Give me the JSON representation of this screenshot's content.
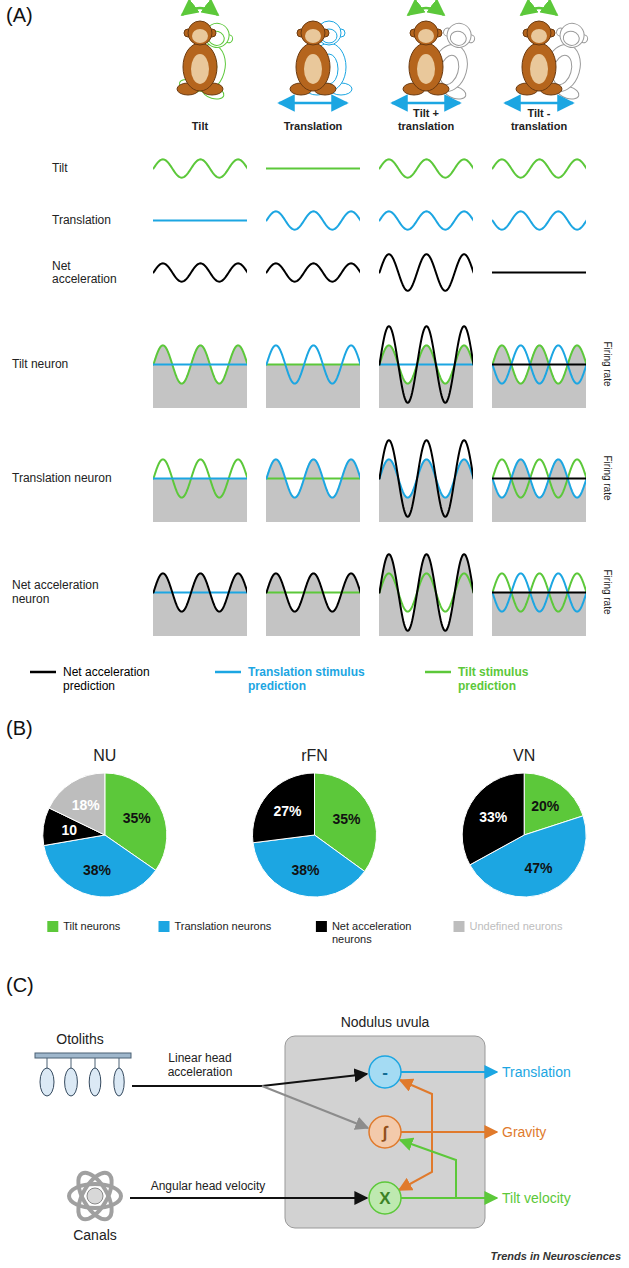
{
  "panel_a": {
    "letter": "(A)",
    "columns": [
      "Tilt",
      "Translation",
      "Tilt + translation",
      "Tilt - translation"
    ],
    "signals": [
      {
        "name": "Tilt",
        "color": "#5cc83a",
        "values": [
          1,
          0,
          1,
          1
        ]
      },
      {
        "name": "Translation",
        "color": "#1ca6e2",
        "values": [
          0,
          1,
          1,
          -1
        ]
      },
      {
        "name": "Net acceleration",
        "color": "#000000",
        "values": [
          1,
          1,
          2,
          0
        ]
      }
    ],
    "neurons": [
      {
        "name": "Tilt neuron",
        "response": [
          1,
          0,
          1,
          1
        ],
        "predictions": [
          [
            null,
            0,
            1
          ],
          [
            null,
            1,
            0
          ],
          [
            2,
            0,
            1
          ],
          [
            0,
            -1,
            1
          ]
        ]
      },
      {
        "name": "Translation neuron",
        "response": [
          0,
          1,
          1,
          -1
        ],
        "predictions": [
          [
            null,
            0,
            1
          ],
          [
            null,
            1,
            0
          ],
          [
            2,
            1,
            null
          ],
          [
            0,
            -1,
            1
          ]
        ]
      },
      {
        "name": "Net acceleration neuron",
        "response": [
          1,
          1,
          2,
          0
        ],
        "predictions": [
          [
            1,
            0,
            null
          ],
          [
            1,
            null,
            0
          ],
          [
            2,
            null,
            1
          ],
          [
            0,
            -1,
            1
          ]
        ]
      }
    ],
    "neuron_axis_label": "Firing rate",
    "legend": [
      {
        "label": "Net acceleration prediction",
        "color": "#000000"
      },
      {
        "label": "Translation stimulus prediction",
        "color": "#1ca6e2"
      },
      {
        "label": "Tilt stimulus prediction",
        "color": "#5cc83a"
      }
    ]
  },
  "panel_b": {
    "letter": "(B)"
  },
  "chart_data": [
    {
      "type": "pie",
      "title": "NU",
      "categories": [
        "Tilt neurons",
        "Translation neurons",
        "Net acceleration neurons",
        "Undefined neurons"
      ],
      "values": [
        35,
        38,
        10,
        18
      ],
      "value_labels": [
        "35%",
        "38%",
        "10",
        "18%"
      ],
      "colors": [
        "#5cc83a",
        "#1ca6e2",
        "#000000",
        "#bdbdbd"
      ],
      "data_labels": true,
      "legend": "bottom"
    },
    {
      "type": "pie",
      "title": "rFN",
      "categories": [
        "Tilt neurons",
        "Translation neurons",
        "Net acceleration neurons"
      ],
      "values": [
        35,
        38,
        27
      ],
      "value_labels": [
        "35%",
        "38%",
        "27%"
      ],
      "colors": [
        "#5cc83a",
        "#1ca6e2",
        "#000000"
      ],
      "data_labels": true,
      "legend": "bottom"
    },
    {
      "type": "pie",
      "title": "VN",
      "categories": [
        "Tilt neurons",
        "Translation neurons",
        "Net acceleration neurons"
      ],
      "values": [
        20,
        47,
        33
      ],
      "value_labels": [
        "20%",
        "47%",
        "33%"
      ],
      "colors": [
        "#5cc83a",
        "#1ca6e2",
        "#000000"
      ],
      "data_labels": true,
      "legend": "bottom"
    }
  ],
  "panel_c": {
    "letter": "(C)",
    "box_title": "Nodulus uvula",
    "inputs": [
      {
        "label": "Otoliths",
        "signal": "Linear head acceleration"
      },
      {
        "label": "Canals",
        "signal": "Angular head velocity"
      }
    ],
    "nodes": [
      {
        "symbol": "-",
        "output": "Translation",
        "color": "#1ca6e2"
      },
      {
        "symbol": "∫",
        "output": "Gravity",
        "color": "#e07a2c"
      },
      {
        "symbol": "X",
        "output": "Tilt velocity",
        "color": "#5cc83a"
      }
    ]
  },
  "footer": "Trends in Neurosciences"
}
